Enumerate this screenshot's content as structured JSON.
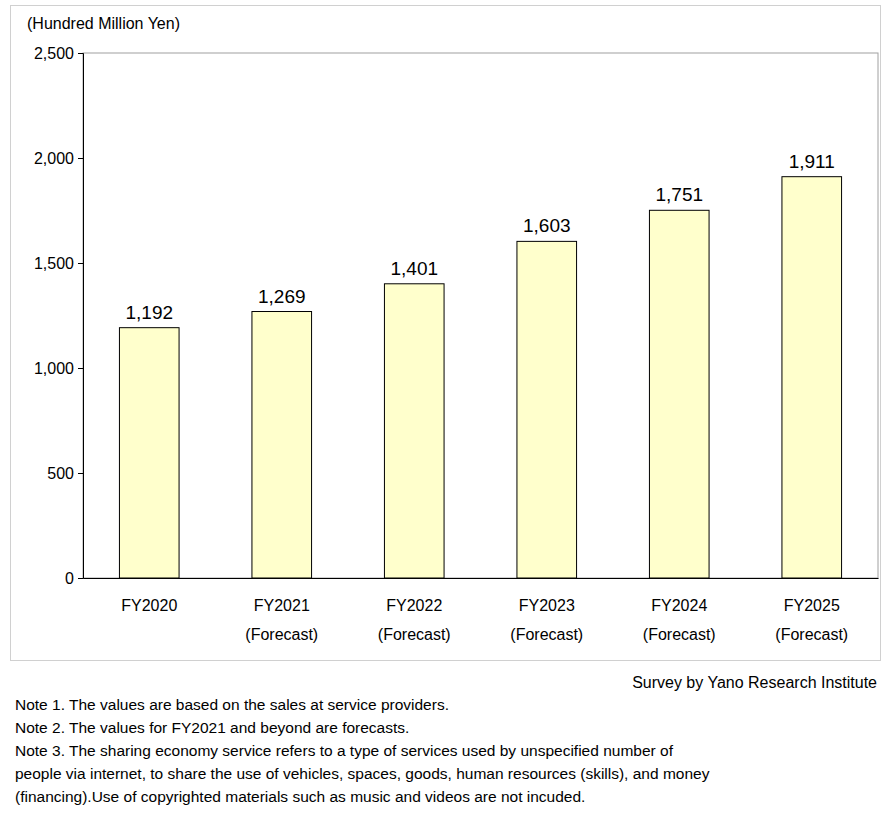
{
  "chart_data": {
    "type": "bar",
    "y_label": "(Hundred Million Yen)",
    "categories": [
      "FY2020",
      "FY2021\n(Forecast)",
      "FY2022\n(Forecast)",
      "FY2023\n(Forecast)",
      "FY2024\n(Forecast)",
      "FY2025\n(Forecast)"
    ],
    "values": [
      1192,
      1269,
      1401,
      1603,
      1751,
      1911
    ],
    "value_labels": [
      "1,192",
      "1,269",
      "1,401",
      "1,603",
      "1,751",
      "1,911"
    ],
    "color": "#ffffcc",
    "ylim": [
      0,
      2500
    ],
    "yticks": [
      0,
      500,
      {
        "value": 1000,
        "label": "1,000"
      },
      {
        "value": 1500,
        "label": "1,500"
      },
      {
        "value": 2000,
        "label": "2,000"
      },
      {
        "value": 2500,
        "label": "2,500"
      }
    ],
    "grid": false,
    "data_labels": true,
    "source": "Survey by Yano Research Institute",
    "notes": [
      "Note 1.  The values are based on the sales at service providers.",
      "Note 2.  The values for FY2021 and beyond are forecasts.",
      "Note 3.  The sharing economy service refers to a type of services used by unspecified number of\npeople via internet, to share the use of vehicles, spaces, goods, human resources (skills), and money\n(financing).Use of copyrighted materials such as music and videos are not incuded."
    ]
  }
}
